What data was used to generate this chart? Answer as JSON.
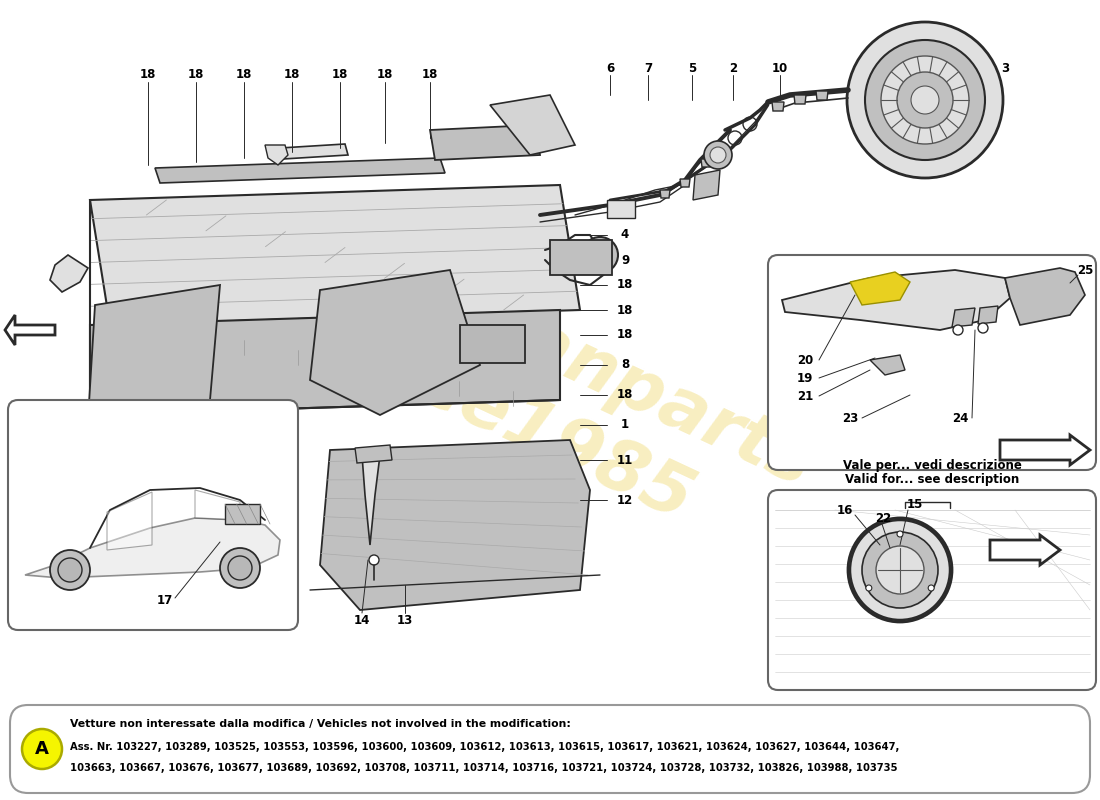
{
  "bg": "#ffffff",
  "wm_text": "europeanparts\nsince1985",
  "wm_color": "#e8c830",
  "wm_alpha": 0.3,
  "bottom_line1_bold": "Vetture non interessate dalla modifica / Vehicles not involved in the modification:",
  "bottom_line2": "Ass. Nr. 103227, 103289, 103525, 103553, 103596, 103600, 103609, 103612, 103613, 103615, 103617, 103621, 103624, 103627, 103644, 103647,",
  "bottom_line3": "103663, 103667, 103676, 103677, 103689, 103692, 103708, 103711, 103714, 103716, 103721, 103724, 103728, 103732, 103826, 103988, 103735",
  "box_A_label": "A",
  "box_A_color": "#f5f500",
  "ur_caption1": "Vale per... vedi descrizione",
  "ur_caption2": "Valid for... see description",
  "fig_w": 11.0,
  "fig_h": 8.0,
  "dpi": 100
}
